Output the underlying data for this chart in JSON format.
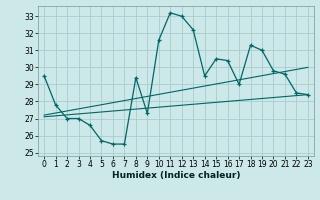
{
  "xlabel": "Humidex (Indice chaleur)",
  "bg_color": "#cce8e8",
  "grid_color": "#aacccc",
  "line_color": "#006666",
  "xlim": [
    -0.5,
    23.5
  ],
  "ylim": [
    24.8,
    33.6
  ],
  "yticks": [
    25,
    26,
    27,
    28,
    29,
    30,
    31,
    32,
    33
  ],
  "xticks": [
    0,
    1,
    2,
    3,
    4,
    5,
    6,
    7,
    8,
    9,
    10,
    11,
    12,
    13,
    14,
    15,
    16,
    17,
    18,
    19,
    20,
    21,
    22,
    23
  ],
  "x_data": [
    0,
    1,
    2,
    3,
    4,
    5,
    6,
    7,
    8,
    9,
    10,
    11,
    12,
    13,
    14,
    15,
    16,
    17,
    18,
    19,
    20,
    21,
    22,
    23
  ],
  "y_data": [
    29.5,
    27.8,
    27.0,
    27.0,
    26.6,
    25.7,
    25.5,
    25.5,
    29.4,
    27.3,
    31.6,
    33.2,
    33.0,
    32.2,
    29.5,
    30.5,
    30.4,
    29.0,
    31.3,
    31.0,
    29.8,
    29.6,
    28.5,
    28.4
  ],
  "line1_x": [
    0,
    23
  ],
  "line1_y": [
    27.1,
    28.4
  ],
  "line2_x": [
    0,
    23
  ],
  "line2_y": [
    27.2,
    30.0
  ],
  "tick_fontsize": 5.5,
  "xlabel_fontsize": 6.5
}
